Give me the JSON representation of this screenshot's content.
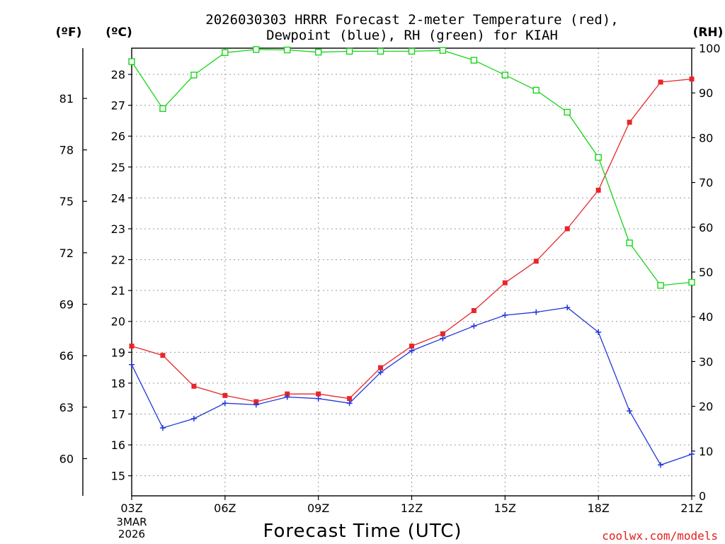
{
  "chart_data": {
    "type": "line",
    "title_line1": "2026030303 HRRR Forecast 2-meter Temperature (red),",
    "title_line2": "Dewpoint (blue), RH (green) for KIAH",
    "unit_f": "(ºF)",
    "unit_c": "(ºC)",
    "unit_rh": "(RH)",
    "xlabel": "Forecast Time (UTC)",
    "x_start_date_line1": "3MAR",
    "x_start_date_line2": "2026",
    "credit": "coolwx.com/models",
    "x_hours": [
      3,
      4,
      5,
      6,
      7,
      8,
      9,
      10,
      11,
      12,
      13,
      14,
      15,
      16,
      17,
      18,
      19,
      20,
      21
    ],
    "x_tick_labels": [
      {
        "hour": 3,
        "label": "03Z"
      },
      {
        "hour": 6,
        "label": "06Z"
      },
      {
        "hour": 9,
        "label": "09Z"
      },
      {
        "hour": 12,
        "label": "12Z"
      },
      {
        "hour": 15,
        "label": "15Z"
      },
      {
        "hour": 18,
        "label": "18Z"
      },
      {
        "hour": 21,
        "label": "21Z"
      }
    ],
    "celsius_axis": {
      "range": [
        14.35,
        28.85
      ],
      "ticks": [
        15,
        16,
        17,
        18,
        19,
        20,
        21,
        22,
        23,
        24,
        25,
        26,
        27,
        28
      ]
    },
    "fahrenheit_ticks": [
      60,
      63,
      66,
      69,
      72,
      75,
      78,
      81
    ],
    "rh_axis": {
      "range": [
        0,
        100
      ],
      "ticks": [
        0,
        10,
        20,
        30,
        40,
        50,
        60,
        70,
        80,
        90,
        100
      ]
    },
    "series": [
      {
        "name": "Temperature",
        "unit": "C",
        "color": "#e8262a",
        "marker": "filled-square",
        "values": [
          19.2,
          18.9,
          17.9,
          17.6,
          17.4,
          17.65,
          17.65,
          17.5,
          18.5,
          19.2,
          19.6,
          20.35,
          21.25,
          21.95,
          23.0,
          24.25,
          26.45,
          27.75,
          27.85
        ]
      },
      {
        "name": "Dewpoint",
        "unit": "C",
        "color": "#2236d9",
        "marker": "plus",
        "values": [
          18.6,
          16.55,
          16.85,
          17.35,
          17.3,
          17.55,
          17.5,
          17.35,
          18.35,
          19.05,
          19.45,
          19.85,
          20.2,
          20.3,
          20.45,
          19.65,
          17.1,
          15.35,
          15.7
        ]
      },
      {
        "name": "RH",
        "unit": "%",
        "color": "#19d41b",
        "marker": "open-square",
        "values": [
          97.0,
          86.5,
          94.0,
          99.0,
          99.7,
          99.6,
          99.1,
          99.3,
          99.3,
          99.3,
          99.5,
          97.3,
          94.0,
          90.6,
          85.7,
          75.6,
          56.5,
          47.0,
          47.7
        ]
      }
    ]
  }
}
